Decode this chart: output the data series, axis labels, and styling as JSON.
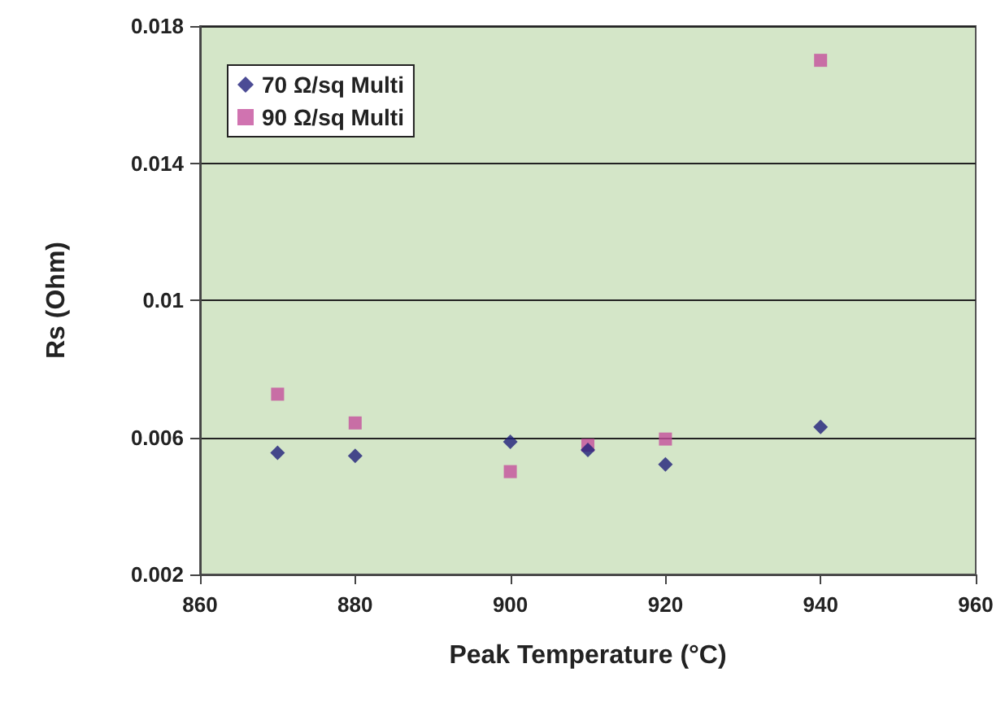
{
  "chart_data": {
    "type": "scatter",
    "xlabel": "Peak Temperature (°C)",
    "ylabel": "Rs (Ohm)",
    "x": [
      870,
      880,
      900,
      910,
      920,
      940
    ],
    "series": [
      {
        "name": "70 Ω/sq Multi",
        "color": "#1f1f7a",
        "marker": "diamond",
        "values": [
          0.00555,
          0.00546,
          0.00587,
          0.00563,
          0.00521,
          0.0063
        ]
      },
      {
        "name": "90 Ω/sq Multi",
        "color": "#c4509c",
        "marker": "square",
        "values": [
          0.00726,
          0.00642,
          0.005,
          0.00577,
          0.00595,
          0.017
        ]
      }
    ],
    "xlim": [
      860,
      960
    ],
    "xticks": [
      860,
      880,
      900,
      920,
      940,
      960
    ],
    "ylim": [
      0.002,
      0.018
    ],
    "yticks": [
      0.002,
      0.006,
      0.01,
      0.014,
      0.018
    ],
    "grid": "y",
    "legend": "top left"
  }
}
